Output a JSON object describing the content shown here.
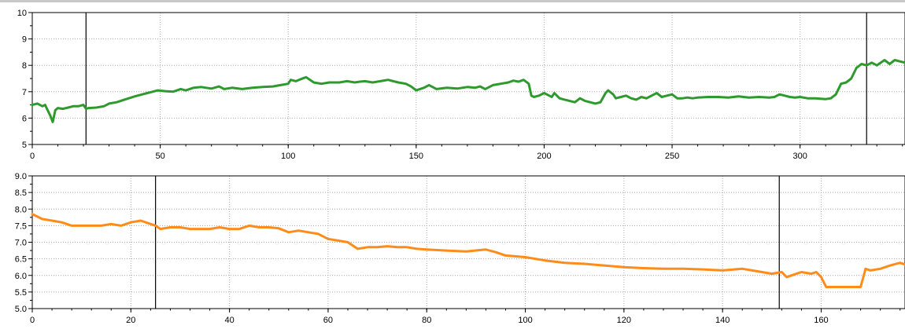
{
  "chart_data": [
    {
      "type": "line",
      "title": "",
      "xlabel": "",
      "ylabel": "",
      "xlim": [
        0,
        341
      ],
      "ylim": [
        5,
        10
      ],
      "xticks": [
        0,
        50,
        100,
        150,
        200,
        250,
        300
      ],
      "xtick_labels": [
        "0",
        "50",
        "100",
        "150",
        "200",
        "250",
        "300"
      ],
      "yticks": [
        5,
        6,
        7,
        8,
        9,
        10
      ],
      "ytick_labels": [
        "5",
        "6",
        "7",
        "8",
        "9",
        "10"
      ],
      "grid": true,
      "markers": [
        21,
        326
      ],
      "colors": {
        "line": "#2e9a2e",
        "marker": "#000000"
      },
      "series": [
        {
          "x": [
            0,
            2,
            4,
            5,
            6,
            7,
            8,
            9,
            10,
            12,
            14,
            16,
            18,
            20,
            21,
            22,
            25,
            28,
            30,
            33,
            36,
            40,
            43,
            45,
            47,
            49,
            52,
            55,
            58,
            60,
            63,
            66,
            70,
            73,
            75,
            78,
            82,
            86,
            90,
            94,
            97,
            100,
            101,
            103,
            105,
            107,
            110,
            113,
            116,
            120,
            123,
            126,
            128,
            130,
            133,
            136,
            139,
            143,
            146,
            148,
            150,
            153,
            155,
            158,
            162,
            166,
            170,
            173,
            175,
            177,
            180,
            183,
            186,
            188,
            190,
            192,
            194,
            195,
            196,
            198,
            200,
            202,
            203,
            204,
            206,
            208,
            210,
            212,
            214,
            216,
            218,
            220,
            222,
            224,
            225,
            227,
            228,
            230,
            232,
            234,
            236,
            238,
            240,
            242,
            244,
            246,
            248,
            250,
            252,
            254,
            256,
            258,
            260,
            264,
            268,
            272,
            276,
            280,
            284,
            288,
            290,
            292,
            294,
            296,
            298,
            300,
            303,
            306,
            310,
            312,
            314,
            316,
            318,
            320,
            322,
            324,
            326,
            328,
            330,
            333,
            335,
            337,
            339,
            341
          ],
          "y": [
            6.5,
            6.55,
            6.45,
            6.5,
            6.3,
            6.1,
            5.85,
            6.3,
            6.38,
            6.35,
            6.4,
            6.45,
            6.45,
            6.5,
            6.35,
            6.38,
            6.4,
            6.45,
            6.55,
            6.6,
            6.7,
            6.82,
            6.9,
            6.95,
            7.0,
            7.05,
            7.02,
            7.0,
            7.1,
            7.05,
            7.15,
            7.18,
            7.12,
            7.2,
            7.1,
            7.15,
            7.1,
            7.15,
            7.18,
            7.2,
            7.25,
            7.3,
            7.45,
            7.4,
            7.48,
            7.55,
            7.35,
            7.3,
            7.35,
            7.35,
            7.4,
            7.35,
            7.38,
            7.4,
            7.35,
            7.4,
            7.45,
            7.35,
            7.3,
            7.2,
            7.05,
            7.15,
            7.25,
            7.1,
            7.15,
            7.12,
            7.18,
            7.15,
            7.2,
            7.1,
            7.25,
            7.3,
            7.35,
            7.42,
            7.38,
            7.45,
            7.3,
            6.85,
            6.8,
            6.85,
            6.95,
            6.85,
            6.8,
            6.95,
            6.75,
            6.7,
            6.65,
            6.6,
            6.75,
            6.65,
            6.6,
            6.55,
            6.6,
            6.95,
            7.05,
            6.9,
            6.75,
            6.8,
            6.85,
            6.75,
            6.7,
            6.8,
            6.75,
            6.85,
            6.95,
            6.8,
            6.85,
            6.9,
            6.75,
            6.75,
            6.78,
            6.75,
            6.78,
            6.8,
            6.8,
            6.78,
            6.82,
            6.78,
            6.8,
            6.78,
            6.8,
            6.9,
            6.85,
            6.8,
            6.78,
            6.8,
            6.75,
            6.75,
            6.72,
            6.75,
            6.9,
            7.3,
            7.35,
            7.5,
            7.9,
            8.05,
            8.0,
            8.1,
            8.0,
            8.2,
            8.05,
            8.2,
            8.15,
            8.1
          ]
        }
      ]
    },
    {
      "type": "line",
      "title": "",
      "xlabel": "",
      "ylabel": "",
      "xlim": [
        0,
        177
      ],
      "ylim": [
        5.0,
        9.0
      ],
      "xticks": [
        0,
        20,
        40,
        60,
        80,
        100,
        120,
        140,
        160
      ],
      "xtick_labels": [
        "0",
        "20",
        "40",
        "60",
        "80",
        "100",
        "120",
        "140",
        "160"
      ],
      "yticks": [
        5.0,
        5.5,
        6.0,
        6.5,
        7.0,
        7.5,
        8.0,
        8.5,
        9.0
      ],
      "ytick_labels": [
        "5.0",
        "5.5",
        "6.0",
        "6.5",
        "7.0",
        "7.5",
        "8.0",
        "8.5",
        "9.0"
      ],
      "grid": true,
      "markers": [
        25,
        151.5
      ],
      "colors": {
        "line": "#ff8c1a",
        "marker": "#000000"
      },
      "series": [
        {
          "x": [
            0,
            2,
            4,
            6,
            8,
            10,
            12,
            14,
            16,
            18,
            20,
            22,
            24,
            25,
            26,
            28,
            30,
            32,
            34,
            36,
            38,
            40,
            42,
            44,
            46,
            48,
            50,
            52,
            54,
            56,
            58,
            60,
            62,
            64,
            66,
            68,
            70,
            72,
            74,
            76,
            78,
            80,
            84,
            88,
            92,
            94,
            96,
            100,
            104,
            108,
            112,
            116,
            120,
            124,
            128,
            132,
            136,
            140,
            144,
            146,
            148,
            150,
            152,
            153,
            155,
            156,
            158,
            159,
            160,
            161,
            163,
            166,
            168,
            169,
            170,
            172,
            174,
            176,
            177
          ],
          "y": [
            7.85,
            7.7,
            7.65,
            7.6,
            7.5,
            7.5,
            7.5,
            7.5,
            7.55,
            7.5,
            7.6,
            7.65,
            7.55,
            7.5,
            7.4,
            7.45,
            7.45,
            7.4,
            7.4,
            7.4,
            7.45,
            7.4,
            7.4,
            7.5,
            7.45,
            7.45,
            7.42,
            7.3,
            7.35,
            7.3,
            7.25,
            7.1,
            7.05,
            7.0,
            6.8,
            6.85,
            6.85,
            6.88,
            6.85,
            6.85,
            6.8,
            6.78,
            6.75,
            6.72,
            6.78,
            6.7,
            6.6,
            6.55,
            6.45,
            6.38,
            6.35,
            6.3,
            6.25,
            6.22,
            6.2,
            6.2,
            6.18,
            6.15,
            6.2,
            6.15,
            6.1,
            6.05,
            6.1,
            5.95,
            6.05,
            6.1,
            6.05,
            6.1,
            5.95,
            5.65,
            5.65,
            5.65,
            5.65,
            6.2,
            6.15,
            6.2,
            6.3,
            6.38,
            6.33
          ]
        }
      ]
    }
  ]
}
